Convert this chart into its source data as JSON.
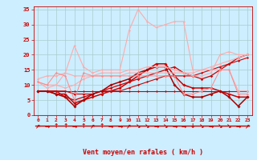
{
  "bg_color": "#cceeff",
  "grid_color": "#aacccc",
  "xlabel": "Vent moyen/en rafales ( km/h )",
  "xlabel_color": "#cc0000",
  "tick_color": "#cc0000",
  "xlim": [
    -0.5,
    23.5
  ],
  "ylim": [
    0,
    36
  ],
  "yticks": [
    0,
    5,
    10,
    15,
    20,
    25,
    30,
    35
  ],
  "xticks": [
    0,
    1,
    2,
    3,
    4,
    5,
    6,
    7,
    8,
    9,
    10,
    11,
    12,
    13,
    14,
    15,
    16,
    17,
    18,
    19,
    20,
    21,
    22,
    23
  ],
  "arrows": [
    "↗",
    "→",
    "↑",
    "↑",
    "→",
    "↑",
    "↗",
    "↑",
    "→",
    "→",
    "↗",
    "↘",
    "↘",
    "→",
    "↘",
    "→",
    "→",
    "↓",
    "↘",
    "→",
    "↘",
    "↘",
    "→",
    "↗"
  ],
  "series": [
    {
      "y": [
        8,
        8,
        8,
        8,
        8,
        8,
        8,
        8,
        8,
        8,
        8,
        8,
        8,
        8,
        8,
        8,
        8,
        8,
        8,
        8,
        8,
        8,
        8,
        8
      ],
      "color": "#cc0000",
      "lw": 0.8,
      "marker": "D",
      "ms": 1.5
    },
    {
      "y": [
        8,
        8,
        8,
        8,
        7,
        7,
        7,
        8,
        8,
        8,
        9,
        10,
        11,
        12,
        13,
        13,
        13,
        13,
        14,
        15,
        16,
        17,
        18,
        19
      ],
      "color": "#cc0000",
      "lw": 0.8,
      "marker": "D",
      "ms": 1.5
    },
    {
      "y": [
        8,
        8,
        8,
        6,
        5,
        6,
        7,
        8,
        9,
        10,
        11,
        12,
        13,
        14,
        15,
        16,
        14,
        13,
        12,
        13,
        15,
        17,
        19,
        20
      ],
      "color": "#cc0000",
      "lw": 0.9,
      "marker": "D",
      "ms": 1.8
    },
    {
      "y": [
        8,
        8,
        7,
        7,
        4,
        5,
        6,
        7,
        8,
        9,
        11,
        13,
        15,
        17,
        17,
        13,
        10,
        9,
        9,
        9,
        8,
        7,
        6,
        6
      ],
      "color": "#cc0000",
      "lw": 1.1,
      "marker": "D",
      "ms": 2.0
    },
    {
      "y": [
        8,
        8,
        7,
        6,
        3,
        5,
        7,
        8,
        10,
        11,
        12,
        14,
        15,
        16,
        16,
        10,
        7,
        6,
        6,
        7,
        8,
        6,
        3,
        6
      ],
      "color": "#aa0000",
      "lw": 1.1,
      "marker": "D",
      "ms": 2.0
    },
    {
      "y": [
        11,
        10,
        10,
        9,
        10,
        12,
        13,
        14,
        14,
        14,
        15,
        15,
        16,
        16,
        16,
        15,
        14,
        13,
        13,
        14,
        20,
        21,
        20,
        20
      ],
      "color": "#ffaaaa",
      "lw": 0.8,
      "marker": "D",
      "ms": 1.5
    },
    {
      "y": [
        12,
        13,
        13,
        14,
        13,
        13,
        13,
        13,
        13,
        13,
        14,
        14,
        14,
        14,
        14,
        14,
        14,
        14,
        15,
        16,
        17,
        18,
        19,
        20
      ],
      "color": "#ffaaaa",
      "lw": 0.8,
      "marker": "D",
      "ms": 1.5
    },
    {
      "y": [
        11,
        9,
        10,
        14,
        23,
        16,
        14,
        15,
        15,
        15,
        28,
        35,
        31,
        29,
        30,
        31,
        31,
        15,
        15,
        15,
        15,
        15,
        8,
        8
      ],
      "color": "#ffaaaa",
      "lw": 0.8,
      "marker": "D",
      "ms": 1.5
    },
    {
      "y": [
        11,
        10,
        14,
        13,
        5,
        14,
        13,
        13,
        13,
        13,
        13,
        13,
        13,
        13,
        13,
        13,
        7,
        7,
        8,
        9,
        15,
        15,
        7,
        7
      ],
      "color": "#ff8888",
      "lw": 0.7,
      "marker": "D",
      "ms": 1.5
    }
  ]
}
